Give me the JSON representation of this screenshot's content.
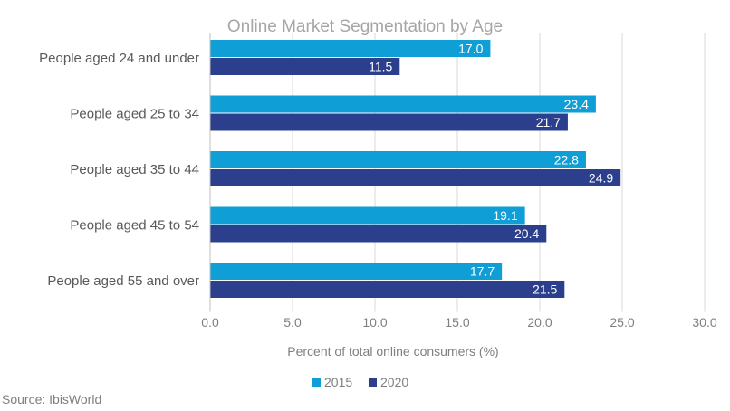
{
  "chart_data": {
    "type": "bar",
    "orientation": "horizontal",
    "title": "Online Market Segmentation by Age",
    "xlabel": "Percent of total online consumers (%)",
    "ylabel": "",
    "categories": [
      "People aged 24 and under",
      "People aged 25 to 34",
      "People aged 35 to 44",
      "People aged 45 to 54",
      "People aged 55 and over"
    ],
    "series": [
      {
        "name": "2015",
        "color": "#0f9ed5",
        "values": [
          17.0,
          23.4,
          22.8,
          19.1,
          17.7
        ],
        "labels": [
          "17.0",
          "23.4",
          "22.8",
          "19.1",
          "17.7"
        ]
      },
      {
        "name": "2020",
        "color": "#2b3f8c",
        "values": [
          11.5,
          21.7,
          24.9,
          20.4,
          21.5
        ],
        "labels": [
          "11.5",
          "21.7",
          "24.9",
          "20.4",
          "21.5"
        ]
      }
    ],
    "xlim": [
      0,
      30
    ],
    "ticks": [
      0,
      5,
      10,
      15,
      20,
      25,
      30
    ],
    "tick_labels": [
      "0.0",
      "5.0",
      "10.0",
      "15.0",
      "20.0",
      "25.0",
      "30.0"
    ],
    "grid": "vertical",
    "legend": "bottom-center",
    "data_labels": "inside-end"
  },
  "source": "Source: IbisWorld"
}
